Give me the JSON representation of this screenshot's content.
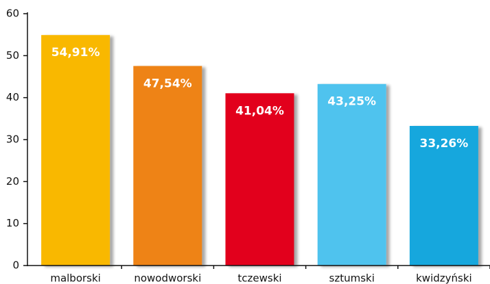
{
  "chart_data": {
    "type": "bar",
    "categories": [
      "malborski",
      "nowodworski",
      "tczewski",
      "sztumski",
      "kwidzyński"
    ],
    "values": [
      54.91,
      47.54,
      41.04,
      43.25,
      33.26
    ],
    "value_labels": [
      "54,91%",
      "47,54%",
      "41,04%",
      "43,25%",
      "33,26%"
    ],
    "colors": [
      "#f9b800",
      "#ee8319",
      "#e2001a",
      "#4fc3ee",
      "#13a7dd"
    ],
    "ylim": [
      0,
      60
    ],
    "yticks": [
      0,
      10,
      20,
      30,
      40,
      50,
      60
    ],
    "grid": false
  }
}
